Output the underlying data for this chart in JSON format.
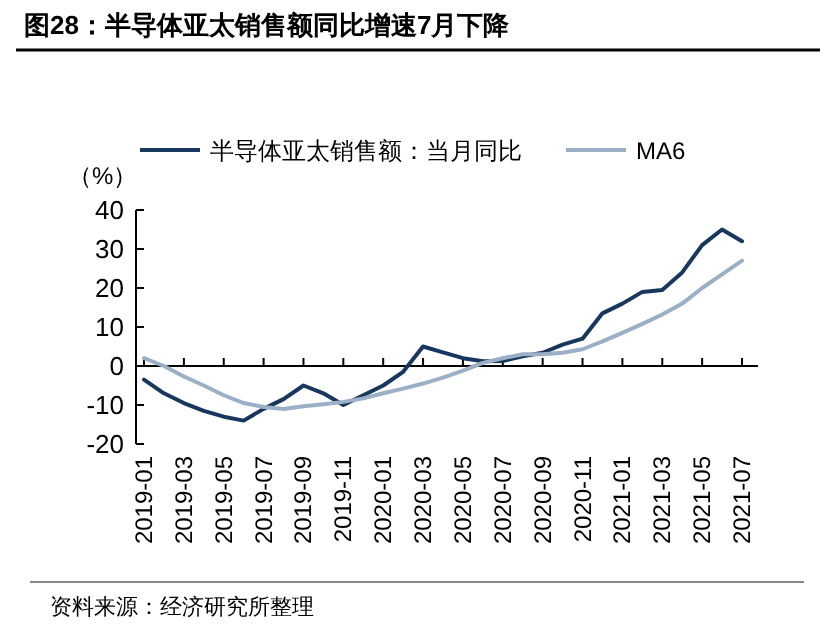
{
  "chart_data": {
    "type": "line",
    "title": "图28：半导体亚太销售额同比增速7月下降",
    "ylabel": "（%）",
    "categories": [
      "2019-01",
      null,
      "2019-03",
      null,
      "2019-05",
      null,
      "2019-07",
      null,
      "2019-09",
      null,
      "2019-11",
      null,
      "2020-01",
      null,
      "2020-03",
      null,
      "2020-05",
      null,
      "2020-07",
      null,
      "2020-09",
      null,
      "2020-11",
      null,
      "2021-01",
      null,
      "2021-03",
      null,
      "2021-05",
      null,
      "2021-07"
    ],
    "series": [
      {
        "name": "半导体亚太销售额：当月同比",
        "color": "#17375e",
        "values": [
          -3.5,
          -7,
          -9.5,
          -11.5,
          -13,
          -14,
          -11,
          -8.5,
          -5,
          -7,
          -10,
          -7.5,
          -5,
          -1.5,
          5,
          3.5,
          2,
          1.2,
          1.3,
          2.5,
          3.4,
          5.5,
          7,
          13.5,
          16,
          19,
          19.5,
          24,
          31,
          35,
          32
        ]
      },
      {
        "name": "MA6",
        "color": "#9bafc6",
        "values": [
          2,
          0,
          -2.7,
          -5,
          -7.5,
          -9.5,
          -10.5,
          -11,
          -10.3,
          -9.8,
          -9.2,
          -8.3,
          -7,
          -5.8,
          -4.5,
          -3,
          -1.2,
          0.8,
          2,
          3,
          3,
          3.4,
          4.3,
          6.3,
          8.5,
          10.8,
          13.2,
          16,
          20,
          23.5,
          27
        ]
      }
    ],
    "ylim": [
      -20,
      40
    ],
    "yticks": [
      -20,
      -10,
      0,
      10,
      20,
      30,
      40
    ],
    "legend": "top",
    "marker": "none",
    "line_style": "solid",
    "annotations": [
      "资料来源：经济研究所整理"
    ]
  }
}
